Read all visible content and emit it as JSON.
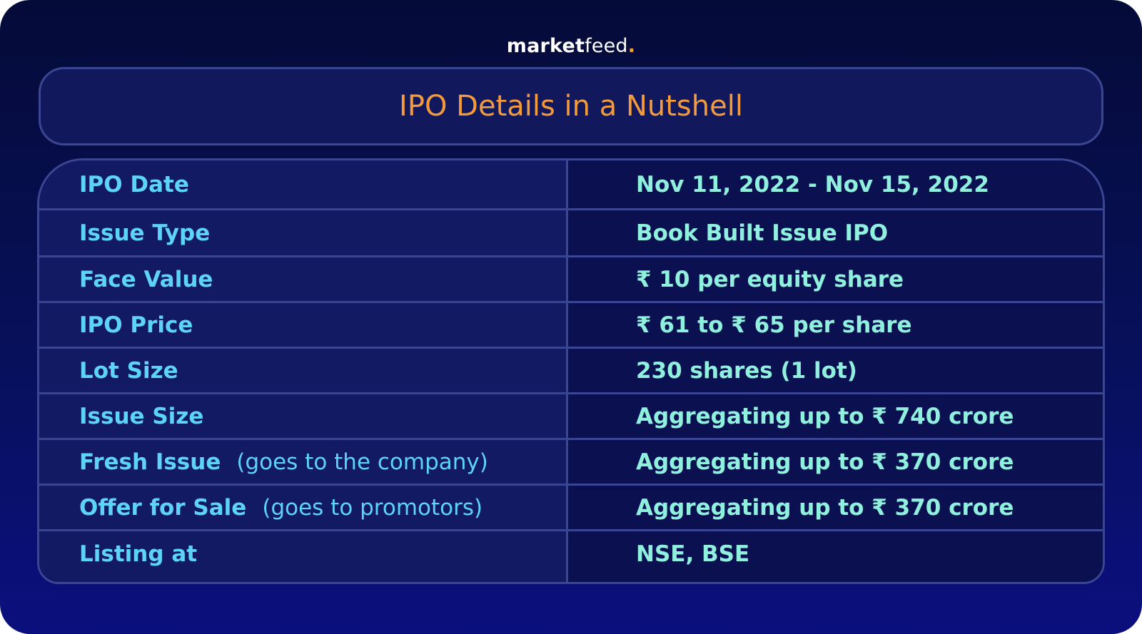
{
  "brand": {
    "part1": "market",
    "part2": "feed",
    "dot": "."
  },
  "title": "IPO Details in a Nutshell",
  "colors": {
    "background_top": "#050b38",
    "background_bottom": "#0a0f7e",
    "title": "#f39a3c",
    "label": "#5dd4f6",
    "value": "#8ff0dd",
    "border": "#3a4691",
    "brand_dot": "#f0a13a"
  },
  "rows": [
    {
      "label": "IPO Date",
      "note": "",
      "value": "Nov 11, 2022 - Nov 15, 2022"
    },
    {
      "label": "Issue Type",
      "note": "",
      "value": "Book Built Issue IPO"
    },
    {
      "label": "Face Value",
      "note": "",
      "value": "₹ 10 per equity share"
    },
    {
      "label": "IPO Price",
      "note": "",
      "value": "₹ 61 to ₹ 65 per share"
    },
    {
      "label": "Lot Size",
      "note": "",
      "value": "230 shares (1 lot)"
    },
    {
      "label": "Issue Size",
      "note": "",
      "value": "Aggregating up to ₹ 740 crore"
    },
    {
      "label": "Fresh Issue",
      "note": "(goes to the company)",
      "value": "Aggregating up to ₹ 370 crore"
    },
    {
      "label": "Offer for Sale",
      "note": "(goes to promotors)",
      "value": "Aggregating up to ₹ 370 crore"
    },
    {
      "label": "Listing at",
      "note": "",
      "value": "NSE, BSE"
    }
  ]
}
